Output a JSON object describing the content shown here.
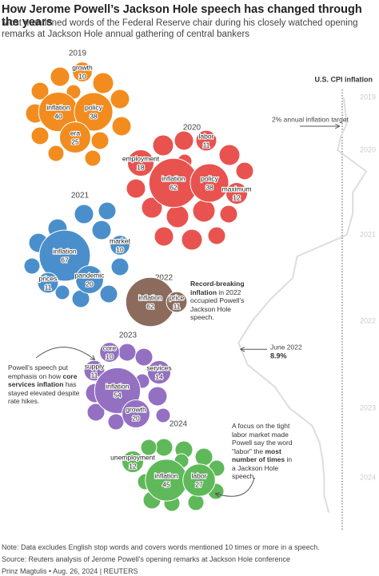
{
  "chart_data": {
    "type": "bubble",
    "title": "How Jerome Powell’s Jackson Hole speech has changed through the years",
    "subtitle": "Most mentioned words of the Federal Reserve chair during his closely watched opening remarks at Jackson Hole annual gathering of central bankers",
    "groups": [
      {
        "year": "2019",
        "color": "#f28c1e",
        "words": [
          {
            "word": "growth",
            "count": 10
          },
          {
            "word": "inflation",
            "count": 40
          },
          {
            "word": "policy",
            "count": 38
          },
          {
            "word": "era",
            "count": 25
          }
        ]
      },
      {
        "year": "2020",
        "color": "#e8534f",
        "words": [
          {
            "word": "labor",
            "count": 11
          },
          {
            "word": "employment",
            "count": 18
          },
          {
            "word": "inflation",
            "count": 62
          },
          {
            "word": "policy",
            "count": 38
          },
          {
            "word": "maximum",
            "count": 12
          }
        ]
      },
      {
        "year": "2021",
        "color": "#4a8fcb",
        "words": [
          {
            "word": "market",
            "count": 10
          },
          {
            "word": "inflation",
            "count": 67
          },
          {
            "word": "pandemic",
            "count": 20
          },
          {
            "word": "prices",
            "count": 11
          }
        ]
      },
      {
        "year": "2022",
        "color": "#8c6b5c",
        "words": [
          {
            "word": "inflation",
            "count": 62
          },
          {
            "word": "price",
            "count": 11
          }
        ]
      },
      {
        "year": "2023",
        "color": "#9470c2",
        "words": [
          {
            "word": "core",
            "count": 10
          },
          {
            "word": "supply",
            "count": 11
          },
          {
            "word": "services",
            "count": 14
          },
          {
            "word": "inflation",
            "count": 54
          },
          {
            "word": "growth",
            "count": 20
          }
        ]
      },
      {
        "year": "2024",
        "color": "#5fb95a",
        "words": [
          {
            "word": "unemployment",
            "count": 12
          },
          {
            "word": "inflation",
            "count": 45
          },
          {
            "word": "labor",
            "count": 27
          }
        ]
      }
    ],
    "annotations": [
      [
        {
          "text": "Record-breaking inflation",
          "bold": true
        },
        {
          "text": " in 2022 occupied Powell’s Jackson Hole speech."
        }
      ],
      [
        {
          "text": "Powell’s speech put emphasis on how "
        },
        {
          "text": "core services inflation",
          "bold": true
        },
        {
          "text": " has stayed elevated despite rate hikes."
        }
      ],
      [
        {
          "text": "A focus on the tight labor market made Powell say the word \"labor\" the "
        },
        {
          "text": "most number of times",
          "bold": true
        },
        {
          "text": " in a Jackson Hole speech."
        }
      ]
    ],
    "cpi": {
      "title": "U.S. CPI inflation",
      "color": "#dddddd",
      "years": [
        "2019",
        "2020",
        "2021",
        "2022",
        "2023",
        "2024"
      ],
      "values": [
        1.9,
        1.8,
        1.7,
        2.1,
        2.3,
        0.4,
        1.3,
        1.3,
        1.7,
        5.0,
        5.3,
        6.8,
        8.0,
        8.9,
        8.3,
        6.5,
        5.5,
        4.0,
        3.5,
        3.3,
        3.2,
        3.2,
        2.9
      ],
      "target": {
        "value": 2,
        "label": "2% annual inflation target"
      },
      "peak": {
        "label": "June 2022",
        "value": 8.9,
        "value_label": "8.9%",
        "index": 13
      }
    },
    "notes": [
      "Note: Data excludes English stop words and covers words mentioned 10 times or more in a speech.",
      "Source: Reuters analysis of Jerome Powell’s opening remarks at Jackson Hole conference",
      "Prinz Magtulis • Aug. 26, 2024 | REUTERS"
    ]
  }
}
